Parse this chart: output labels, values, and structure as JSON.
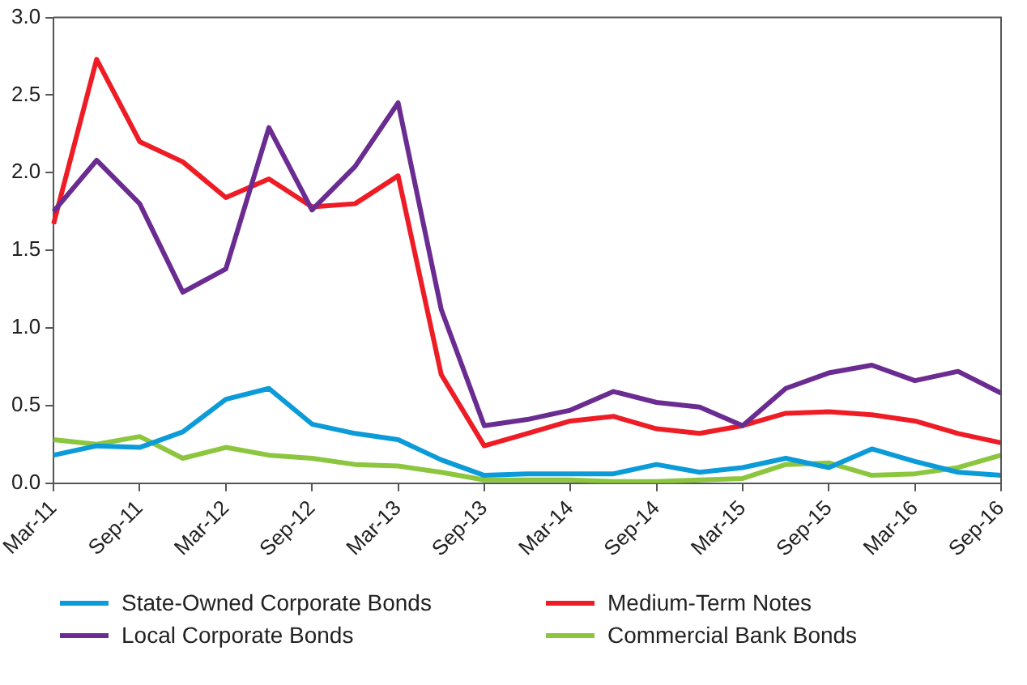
{
  "chart_data": {
    "type": "line",
    "categories": [
      "Mar-11",
      null,
      "Sep-11",
      null,
      "Mar-12",
      null,
      "Sep-12",
      null,
      "Mar-13",
      null,
      "Sep-13",
      null,
      "Mar-14",
      null,
      "Sep-14",
      null,
      "Mar-15",
      null,
      "Sep-15",
      null,
      "Mar-16",
      null,
      "Sep-16"
    ],
    "series": [
      {
        "name": "State-Owned Corporate Bonds",
        "color": "#0b9bd8",
        "values": [
          0.18,
          0.24,
          0.23,
          0.33,
          0.54,
          0.61,
          0.38,
          0.32,
          0.28,
          0.15,
          0.05,
          0.06,
          0.06,
          0.06,
          0.12,
          0.07,
          0.1,
          0.16,
          0.1,
          0.22,
          0.14,
          0.07,
          0.05
        ]
      },
      {
        "name": "Local Corporate Bonds",
        "color": "#6b2c91",
        "values": [
          1.75,
          2.08,
          1.8,
          1.23,
          1.38,
          2.29,
          1.76,
          2.04,
          2.45,
          1.12,
          0.37,
          0.41,
          0.47,
          0.59,
          0.52,
          0.49,
          0.37,
          0.61,
          0.71,
          0.76,
          0.66,
          0.72,
          0.58
        ]
      },
      {
        "name": "Medium-Term Notes",
        "color": "#ee1c25",
        "values": [
          1.67,
          2.73,
          2.2,
          2.07,
          1.84,
          1.96,
          1.78,
          1.8,
          1.98,
          0.7,
          0.24,
          0.32,
          0.4,
          0.43,
          0.35,
          0.32,
          0.37,
          0.45,
          0.46,
          0.44,
          0.4,
          0.32,
          0.26
        ]
      },
      {
        "name": "Commercial Bank Bonds",
        "color": "#8cc63f",
        "values": [
          0.28,
          0.25,
          0.3,
          0.16,
          0.23,
          0.18,
          0.16,
          0.12,
          0.11,
          0.07,
          0.02,
          0.02,
          0.02,
          0.01,
          0.01,
          0.02,
          0.03,
          0.12,
          0.13,
          0.05,
          0.06,
          0.1,
          0.18
        ]
      }
    ],
    "ylim": [
      0,
      3
    ],
    "yticks": [
      {
        "value": 0,
        "label": "0.0"
      },
      {
        "value": 0.5,
        "label": "0.5"
      },
      {
        "value": 1,
        "label": "1.0"
      },
      {
        "value": 1.5,
        "label": "1.5"
      },
      {
        "value": 2,
        "label": "2.0"
      },
      {
        "value": 2.5,
        "label": "2.5"
      },
      {
        "value": 3,
        "label": "3.0"
      }
    ],
    "legend": "bottom",
    "marker": "none",
    "line_style": "solid"
  }
}
